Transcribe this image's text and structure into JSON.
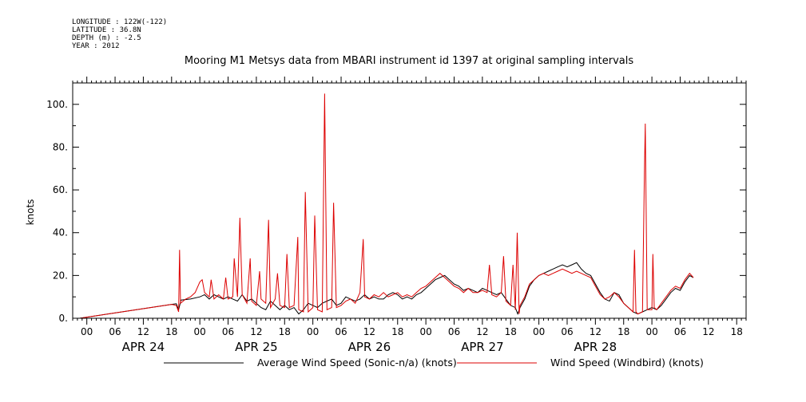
{
  "header": {
    "longitude": "LONGITUDE : 122W(-122)",
    "latitude": "LATITUDE : 36.8N",
    "depth": "DEPTH (m) : -2.5",
    "year": "YEAR : 2012"
  },
  "chart_data": {
    "type": "line",
    "title": "Mooring M1 Metsys data from MBARI instrument id 1397 at original sampling intervals",
    "ylabel": "knots",
    "xlabel": "",
    "ylim": [
      0,
      110
    ],
    "xlim_hours": [
      -21,
      77
    ],
    "x_units": "hours from 00 APR 24 2012",
    "yticks": [
      0,
      20,
      40,
      60,
      80,
      100
    ],
    "ytick_labels": [
      "0.",
      "20.",
      "40.",
      "60.",
      "80.",
      "100."
    ],
    "xticks": [
      {
        "label": "00",
        "hour": -24
      },
      {
        "label": "06",
        "hour": -18
      },
      {
        "label": "12",
        "hour": -12
      },
      {
        "label": "18",
        "hour": -6
      },
      {
        "label": "00",
        "hour": 0
      },
      {
        "label": "06",
        "hour": 6
      },
      {
        "label": "12",
        "hour": 12
      },
      {
        "label": "18",
        "hour": 18
      },
      {
        "label": "00",
        "hour": 24
      },
      {
        "label": "06",
        "hour": 30
      },
      {
        "label": "12",
        "hour": 36
      },
      {
        "label": "18",
        "hour": 42
      },
      {
        "label": "00",
        "hour": 48
      },
      {
        "label": "06",
        "hour": 54
      },
      {
        "label": "12",
        "hour": 60
      },
      {
        "label": "18",
        "hour": 66
      },
      {
        "label": "00",
        "hour": 72
      },
      {
        "label": "06",
        "hour": 78
      },
      {
        "label": "12",
        "hour": 84
      },
      {
        "label": "18",
        "hour": 90
      },
      {
        "label": "00",
        "hour": 96
      },
      {
        "label": "06",
        "hour": 102
      },
      {
        "label": "12",
        "hour": 108
      },
      {
        "label": "18",
        "hour": 114
      }
    ],
    "date_labels": [
      {
        "label": "APR 24",
        "hour": -12
      },
      {
        "label": "APR 25",
        "hour": 12
      },
      {
        "label": "APR 26",
        "hour": 36
      },
      {
        "label": "APR 27",
        "hour": 60
      },
      {
        "label": "APR 28",
        "hour": 84
      }
    ],
    "series": [
      {
        "name": "Average Wind Speed (Sonic-n/a) (knots)",
        "color": "#000000",
        "points": [
          [
            -25.5,
            0
          ],
          [
            -6,
            6.5
          ],
          [
            -5,
            6.8
          ],
          [
            -4.5,
            4
          ],
          [
            -4,
            8.5
          ],
          [
            -2,
            9
          ],
          [
            0,
            10
          ],
          [
            1,
            11
          ],
          [
            2,
            9
          ],
          [
            3,
            11
          ],
          [
            4,
            10
          ],
          [
            5,
            9
          ],
          [
            6,
            10
          ],
          [
            7,
            9
          ],
          [
            8,
            8
          ],
          [
            9,
            11
          ],
          [
            10,
            8
          ],
          [
            11,
            9
          ],
          [
            12,
            7
          ],
          [
            13,
            5
          ],
          [
            14,
            4
          ],
          [
            15,
            8
          ],
          [
            16,
            6
          ],
          [
            17,
            4
          ],
          [
            18,
            6
          ],
          [
            19,
            4
          ],
          [
            20,
            5
          ],
          [
            21,
            2
          ],
          [
            22,
            4
          ],
          [
            23,
            7
          ],
          [
            24,
            6
          ],
          [
            25,
            5
          ],
          [
            26,
            7
          ],
          [
            27,
            8
          ],
          [
            28,
            9
          ],
          [
            29,
            6
          ],
          [
            30,
            7
          ],
          [
            31,
            10
          ],
          [
            32,
            9
          ],
          [
            33,
            8
          ],
          [
            34,
            9
          ],
          [
            35,
            11
          ],
          [
            36,
            9
          ],
          [
            37,
            10
          ],
          [
            38,
            9
          ],
          [
            39,
            9
          ],
          [
            40,
            11
          ],
          [
            41,
            12
          ],
          [
            42,
            11
          ],
          [
            43,
            9
          ],
          [
            44,
            10
          ],
          [
            45,
            9
          ],
          [
            46,
            11
          ],
          [
            47,
            12
          ],
          [
            48,
            14
          ],
          [
            49,
            16
          ],
          [
            50,
            18
          ],
          [
            51,
            19
          ],
          [
            52,
            20
          ],
          [
            53,
            18
          ],
          [
            54,
            16
          ],
          [
            55,
            15
          ],
          [
            56,
            13
          ],
          [
            57,
            14
          ],
          [
            58,
            13
          ],
          [
            59,
            12
          ],
          [
            60,
            14
          ],
          [
            61,
            13
          ],
          [
            62,
            12
          ],
          [
            63,
            11
          ],
          [
            64,
            12
          ],
          [
            65,
            9
          ],
          [
            66,
            6
          ],
          [
            67,
            5
          ],
          [
            67.5,
            2
          ],
          [
            68,
            5
          ],
          [
            69,
            9
          ],
          [
            70,
            15
          ],
          [
            71,
            18
          ],
          [
            72,
            20
          ],
          [
            73,
            21
          ],
          [
            74,
            22
          ],
          [
            75,
            23
          ],
          [
            76,
            24
          ],
          [
            77,
            25
          ],
          [
            78,
            24
          ],
          [
            79,
            25
          ],
          [
            80,
            26
          ],
          [
            81,
            23
          ],
          [
            82,
            21
          ],
          [
            83,
            20
          ],
          [
            84,
            16
          ],
          [
            85,
            12
          ],
          [
            86,
            9
          ],
          [
            87,
            8
          ],
          [
            88,
            12
          ],
          [
            89,
            11
          ],
          [
            90,
            7
          ],
          [
            91,
            5
          ],
          [
            92,
            3
          ],
          [
            93,
            2
          ],
          [
            94,
            3
          ],
          [
            95,
            4
          ],
          [
            96,
            5
          ],
          [
            97,
            4
          ],
          [
            98,
            6
          ],
          [
            99,
            9
          ],
          [
            100,
            12
          ],
          [
            101,
            14
          ],
          [
            102,
            13
          ],
          [
            103,
            17
          ],
          [
            104,
            20
          ],
          [
            104.8,
            19
          ]
        ]
      },
      {
        "name": "Wind Speed (Windbird) (knots)",
        "color": "#dd0000",
        "points": [
          [
            -25.5,
            0
          ],
          [
            -6,
            6.5
          ],
          [
            -5,
            6
          ],
          [
            -4.5,
            3
          ],
          [
            -4.3,
            32
          ],
          [
            -4.1,
            7
          ],
          [
            -3,
            9
          ],
          [
            -2,
            10
          ],
          [
            -1,
            12
          ],
          [
            0,
            17
          ],
          [
            0.5,
            18
          ],
          [
            1,
            12
          ],
          [
            2,
            10
          ],
          [
            2.4,
            18
          ],
          [
            3,
            9
          ],
          [
            4,
            11
          ],
          [
            5,
            9
          ],
          [
            5.5,
            19
          ],
          [
            6,
            9
          ],
          [
            7,
            10
          ],
          [
            7.3,
            28
          ],
          [
            8,
            10
          ],
          [
            8.5,
            47
          ],
          [
            9,
            11
          ],
          [
            10,
            7
          ],
          [
            10.7,
            28
          ],
          [
            11,
            8
          ],
          [
            12,
            6
          ],
          [
            12.7,
            22
          ],
          [
            13,
            9
          ],
          [
            14,
            7
          ],
          [
            14.6,
            46
          ],
          [
            15,
            5
          ],
          [
            16,
            9
          ],
          [
            16.5,
            21
          ],
          [
            17,
            6
          ],
          [
            18,
            5
          ],
          [
            18.5,
            30
          ],
          [
            19,
            5
          ],
          [
            20,
            6
          ],
          [
            20.8,
            38
          ],
          [
            21,
            4
          ],
          [
            22,
            3
          ],
          [
            22.4,
            59
          ],
          [
            23,
            3
          ],
          [
            24,
            5
          ],
          [
            24.4,
            48
          ],
          [
            25,
            4
          ],
          [
            26,
            3
          ],
          [
            26.5,
            105
          ],
          [
            27,
            4
          ],
          [
            28,
            5
          ],
          [
            28.4,
            54
          ],
          [
            29,
            5
          ],
          [
            30,
            6
          ],
          [
            31,
            8
          ],
          [
            32,
            9
          ],
          [
            33,
            7
          ],
          [
            34,
            12
          ],
          [
            34.7,
            37
          ],
          [
            35,
            10
          ],
          [
            36,
            9
          ],
          [
            37,
            11
          ],
          [
            38,
            10
          ],
          [
            39,
            12
          ],
          [
            40,
            10
          ],
          [
            41,
            11
          ],
          [
            42,
            12
          ],
          [
            43,
            10
          ],
          [
            44,
            11
          ],
          [
            45,
            10
          ],
          [
            46,
            12
          ],
          [
            47,
            14
          ],
          [
            48,
            15
          ],
          [
            49,
            17
          ],
          [
            50,
            19
          ],
          [
            51,
            21
          ],
          [
            52,
            19
          ],
          [
            53,
            17
          ],
          [
            54,
            15
          ],
          [
            55,
            14
          ],
          [
            56,
            12
          ],
          [
            57,
            14
          ],
          [
            58,
            12
          ],
          [
            59,
            12
          ],
          [
            60,
            13
          ],
          [
            61,
            12
          ],
          [
            61.5,
            25
          ],
          [
            62,
            11
          ],
          [
            63,
            10
          ],
          [
            64,
            12
          ],
          [
            64.5,
            29
          ],
          [
            65,
            8
          ],
          [
            66,
            6
          ],
          [
            66.5,
            25
          ],
          [
            67,
            4
          ],
          [
            67.4,
            40
          ],
          [
            67.8,
            2
          ],
          [
            68,
            6
          ],
          [
            69,
            10
          ],
          [
            70,
            16
          ],
          [
            71,
            18
          ],
          [
            72,
            20
          ],
          [
            73,
            21
          ],
          [
            74,
            20
          ],
          [
            75,
            21
          ],
          [
            76,
            22
          ],
          [
            77,
            23
          ],
          [
            78,
            22
          ],
          [
            79,
            21
          ],
          [
            80,
            22
          ],
          [
            81,
            21
          ],
          [
            82,
            20
          ],
          [
            83,
            19
          ],
          [
            84,
            15
          ],
          [
            85,
            11
          ],
          [
            86,
            9
          ],
          [
            87,
            10
          ],
          [
            88,
            12
          ],
          [
            89,
            10
          ],
          [
            90,
            7
          ],
          [
            91,
            5
          ],
          [
            92,
            3
          ],
          [
            92.3,
            32
          ],
          [
            92.6,
            3
          ],
          [
            93,
            2
          ],
          [
            94,
            3
          ],
          [
            94.4,
            68
          ],
          [
            94.6,
            91
          ],
          [
            94.8,
            47
          ],
          [
            95,
            4
          ],
          [
            96,
            4
          ],
          [
            96.2,
            30
          ],
          [
            96.5,
            5
          ],
          [
            97,
            4
          ],
          [
            98,
            7
          ],
          [
            99,
            10
          ],
          [
            100,
            13
          ],
          [
            101,
            15
          ],
          [
            102,
            14
          ],
          [
            103,
            18
          ],
          [
            104,
            21
          ],
          [
            104.8,
            19
          ]
        ]
      }
    ],
    "legend": [
      {
        "label": "Average Wind Speed (Sonic-n/a) (knots)",
        "color": "#000000"
      },
      {
        "label": "Wind Speed (Windbird) (knots)",
        "color": "#dd0000"
      }
    ],
    "grid": false,
    "legend_position": "bottom"
  }
}
